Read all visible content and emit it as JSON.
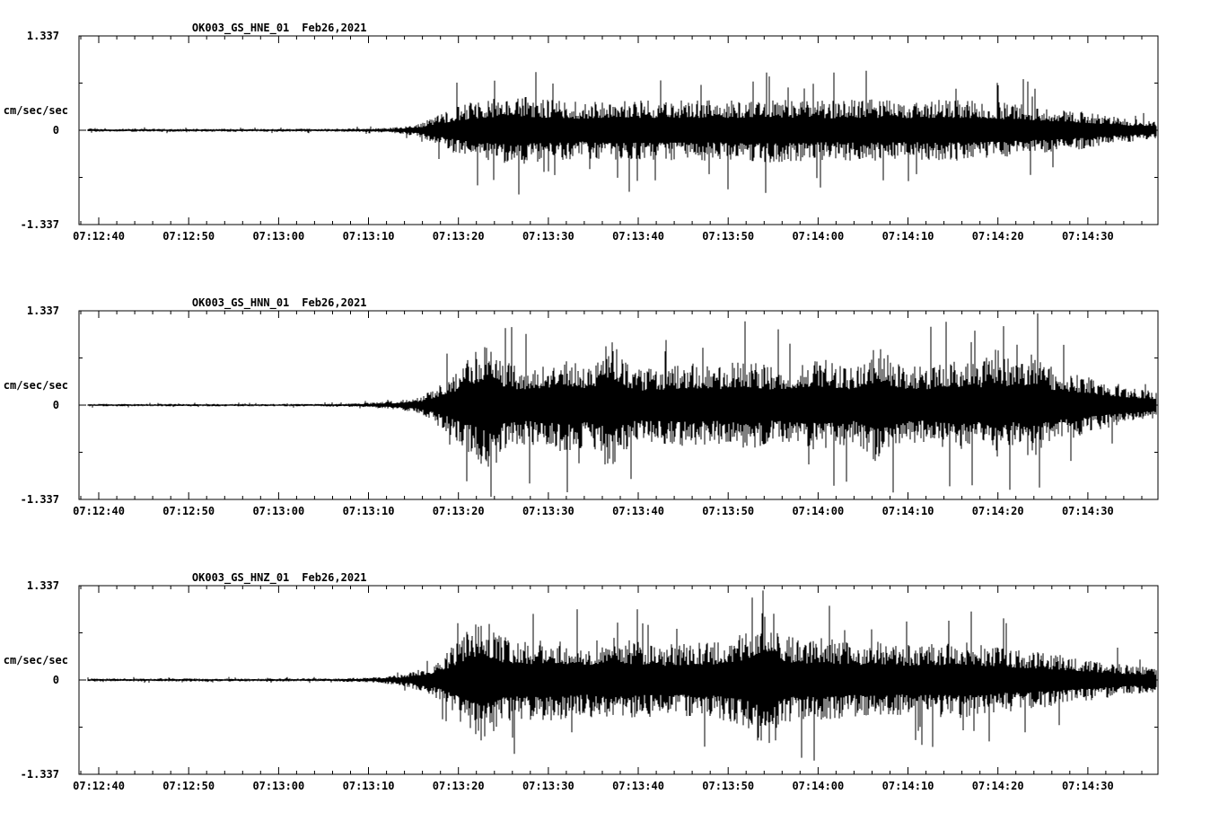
{
  "page": {
    "background": "#ffffff",
    "trace_color": "#000000"
  },
  "chart_data": [
    {
      "type": "line",
      "title_station": "OK003_GS_HNE_01",
      "title_date": "Feb26,2021",
      "ylabel": "cm/sec/sec",
      "y_max_label": "1.337",
      "y_zero_label": "0",
      "y_min_label": "-1.337",
      "ylim": [
        -1.337,
        1.337
      ],
      "x_tick_labels": [
        "07:12:40",
        "07:12:50",
        "07:13:00",
        "07:13:10",
        "07:13:20",
        "07:13:30",
        "07:13:40",
        "07:13:50",
        "07:14:00",
        "07:14:10",
        "07:14:20",
        "07:14:30"
      ],
      "x_axis": {
        "start_time": "07:12:38",
        "duration_sec": 120,
        "lead_in_sec": 2.2,
        "major_tick_sec": 10,
        "minor_tick_sec": 2
      },
      "envelope": [
        [
          0,
          0.022
        ],
        [
          28,
          0.022
        ],
        [
          33,
          0.03
        ],
        [
          36,
          0.05
        ],
        [
          38,
          0.1
        ],
        [
          40,
          0.22
        ],
        [
          42,
          0.34
        ],
        [
          45,
          0.44
        ],
        [
          48,
          0.5
        ],
        [
          52,
          0.44
        ],
        [
          56,
          0.4
        ],
        [
          60,
          0.46
        ],
        [
          64,
          0.42
        ],
        [
          68,
          0.44
        ],
        [
          72,
          0.42
        ],
        [
          76,
          0.46
        ],
        [
          80,
          0.44
        ],
        [
          84,
          0.42
        ],
        [
          88,
          0.44
        ],
        [
          92,
          0.42
        ],
        [
          96,
          0.44
        ],
        [
          100,
          0.42
        ],
        [
          104,
          0.38
        ],
        [
          108,
          0.32
        ],
        [
          112,
          0.26
        ],
        [
          116,
          0.18
        ],
        [
          120,
          0.12
        ]
      ]
    },
    {
      "type": "line",
      "title_station": "OK003_GS_HNN_01",
      "title_date": "Feb26,2021",
      "ylabel": "cm/sec/sec",
      "y_max_label": "1.337",
      "y_zero_label": "0",
      "y_min_label": "-1.337",
      "ylim": [
        -1.337,
        1.337
      ],
      "x_tick_labels": [
        "07:12:40",
        "07:12:50",
        "07:13:00",
        "07:13:10",
        "07:13:20",
        "07:13:30",
        "07:13:40",
        "07:13:50",
        "07:14:00",
        "07:14:10",
        "07:14:20",
        "07:14:30"
      ],
      "x_axis": {
        "start_time": "07:12:38",
        "duration_sec": 120,
        "lead_in_sec": 2.2,
        "major_tick_sec": 10,
        "minor_tick_sec": 2
      },
      "envelope": [
        [
          0,
          0.018
        ],
        [
          26,
          0.018
        ],
        [
          31,
          0.028
        ],
        [
          35,
          0.06
        ],
        [
          38,
          0.12
        ],
        [
          40,
          0.3
        ],
        [
          42,
          0.5
        ],
        [
          44,
          0.75
        ],
        [
          46,
          1.0
        ],
        [
          47,
          0.65
        ],
        [
          49,
          0.55
        ],
        [
          52,
          0.6
        ],
        [
          54,
          0.7
        ],
        [
          56,
          0.6
        ],
        [
          58,
          0.65
        ],
        [
          59,
          1.05
        ],
        [
          60,
          0.75
        ],
        [
          62,
          0.5
        ],
        [
          65,
          0.55
        ],
        [
          68,
          0.6
        ],
        [
          71,
          0.55
        ],
        [
          74,
          0.65
        ],
        [
          77,
          0.55
        ],
        [
          80,
          0.6
        ],
        [
          83,
          0.65
        ],
        [
          86,
          0.55
        ],
        [
          89,
          0.85
        ],
        [
          91,
          0.6
        ],
        [
          94,
          0.55
        ],
        [
          97,
          0.65
        ],
        [
          100,
          0.6
        ],
        [
          102,
          0.8
        ],
        [
          104,
          0.6
        ],
        [
          106,
          0.75
        ],
        [
          108,
          0.55
        ],
        [
          111,
          0.45
        ],
        [
          114,
          0.35
        ],
        [
          117,
          0.26
        ],
        [
          120,
          0.2
        ]
      ]
    },
    {
      "type": "line",
      "title_station": "OK003_GS_HNZ_01",
      "title_date": "Feb26,2021",
      "ylabel": "cm/sec/sec",
      "y_max_label": "1.337",
      "y_zero_label": "0",
      "y_min_label": "-1.337",
      "ylim": [
        -1.337,
        1.337
      ],
      "x_tick_labels": [
        "07:12:40",
        "07:12:50",
        "07:13:00",
        "07:13:10",
        "07:13:20",
        "07:13:30",
        "07:13:40",
        "07:13:50",
        "07:14:00",
        "07:14:10",
        "07:14:20",
        "07:14:30"
      ],
      "x_axis": {
        "start_time": "07:12:38",
        "duration_sec": 120,
        "lead_in_sec": 2.2,
        "major_tick_sec": 10,
        "minor_tick_sec": 2
      },
      "envelope": [
        [
          0,
          0.022
        ],
        [
          28,
          0.022
        ],
        [
          33,
          0.04
        ],
        [
          36,
          0.08
        ],
        [
          39,
          0.2
        ],
        [
          41,
          0.4
        ],
        [
          43,
          0.7
        ],
        [
          45,
          0.88
        ],
        [
          47,
          0.62
        ],
        [
          50,
          0.56
        ],
        [
          53,
          0.6
        ],
        [
          56,
          0.5
        ],
        [
          59,
          0.62
        ],
        [
          62,
          0.55
        ],
        [
          65,
          0.5
        ],
        [
          68,
          0.52
        ],
        [
          71,
          0.56
        ],
        [
          74,
          0.7
        ],
        [
          76,
          0.95
        ],
        [
          77,
          1.05
        ],
        [
          78,
          0.7
        ],
        [
          80,
          0.56
        ],
        [
          83,
          0.6
        ],
        [
          86,
          0.52
        ],
        [
          89,
          0.56
        ],
        [
          92,
          0.5
        ],
        [
          95,
          0.52
        ],
        [
          98,
          0.55
        ],
        [
          101,
          0.48
        ],
        [
          104,
          0.44
        ],
        [
          107,
          0.4
        ],
        [
          110,
          0.34
        ],
        [
          113,
          0.28
        ],
        [
          116,
          0.22
        ],
        [
          120,
          0.18
        ]
      ]
    }
  ]
}
